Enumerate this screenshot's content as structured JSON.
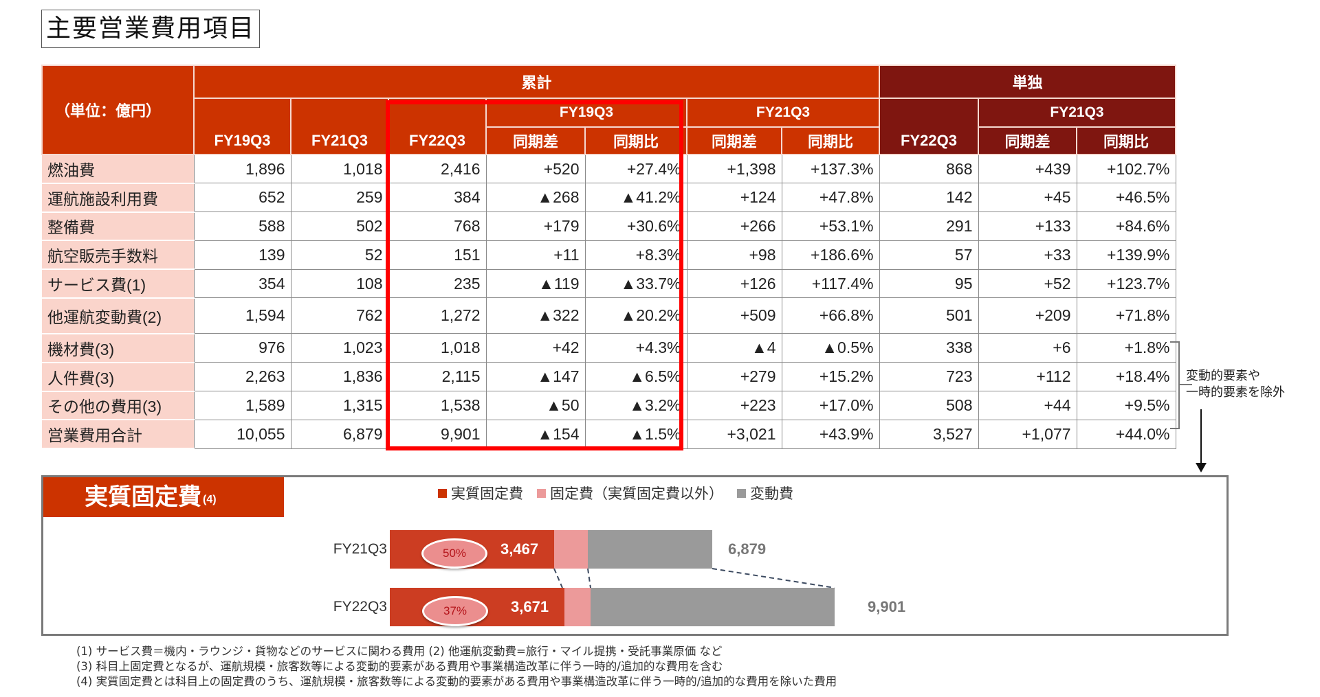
{
  "page_title": "主要営業費用項目",
  "table": {
    "unit_label": "（単位：億円）",
    "group_cumulative": "累計",
    "group_single": "単独",
    "col_fy19q3": "FY19Q3",
    "col_fy21q3": "FY21Q3",
    "col_fy22q3": "FY22Q3",
    "sub_fy19q3": "FY19Q3",
    "sub_fy21q3": "FY21Q3",
    "single_fy22q3": "FY22Q3",
    "single_sub_fy21q3": "FY21Q3",
    "diff_label": "同期差",
    "ratio_label": "同期比",
    "rows": [
      {
        "label": "燃油費",
        "fy19q3": "1,896",
        "fy21q3": "1,018",
        "fy22q3": "2,416",
        "vs19_diff": "+520",
        "vs19_ratio": "+27.4%",
        "vs21_diff": "+1,398",
        "vs21_ratio": "+137.3%",
        "single_fy22q3": "868",
        "single_diff": "+439",
        "single_ratio": "+102.7%"
      },
      {
        "label": "運航施設利用費",
        "fy19q3": "652",
        "fy21q3": "259",
        "fy22q3": "384",
        "vs19_diff": "▲268",
        "vs19_ratio": "▲41.2%",
        "vs21_diff": "+124",
        "vs21_ratio": "+47.8%",
        "single_fy22q3": "142",
        "single_diff": "+45",
        "single_ratio": "+46.5%"
      },
      {
        "label": "整備費",
        "fy19q3": "588",
        "fy21q3": "502",
        "fy22q3": "768",
        "vs19_diff": "+179",
        "vs19_ratio": "+30.6%",
        "vs21_diff": "+266",
        "vs21_ratio": "+53.1%",
        "single_fy22q3": "291",
        "single_diff": "+133",
        "single_ratio": "+84.6%"
      },
      {
        "label": "航空販売手数料",
        "fy19q3": "139",
        "fy21q3": "52",
        "fy22q3": "151",
        "vs19_diff": "+11",
        "vs19_ratio": "+8.3%",
        "vs21_diff": "+98",
        "vs21_ratio": "+186.6%",
        "single_fy22q3": "57",
        "single_diff": "+33",
        "single_ratio": "+139.9%"
      },
      {
        "label": "サービス費(1)",
        "fy19q3": "354",
        "fy21q3": "108",
        "fy22q3": "235",
        "vs19_diff": "▲119",
        "vs19_ratio": "▲33.7%",
        "vs21_diff": "+126",
        "vs21_ratio": "+117.4%",
        "single_fy22q3": "95",
        "single_diff": "+52",
        "single_ratio": "+123.7%"
      },
      {
        "label": "他運航変動費(2)",
        "fy19q3": "1,594",
        "fy21q3": "762",
        "fy22q3": "1,272",
        "vs19_diff": "▲322",
        "vs19_ratio": "▲20.2%",
        "vs21_diff": "+509",
        "vs21_ratio": "+66.8%",
        "single_fy22q3": "501",
        "single_diff": "+209",
        "single_ratio": "+71.8%"
      },
      {
        "label": "機材費(3)",
        "fy19q3": "976",
        "fy21q3": "1,023",
        "fy22q3": "1,018",
        "vs19_diff": "+42",
        "vs19_ratio": "+4.3%",
        "vs21_diff": "▲4",
        "vs21_ratio": "▲0.5%",
        "single_fy22q3": "338",
        "single_diff": "+6",
        "single_ratio": "+1.8%"
      },
      {
        "label": "人件費(3)",
        "fy19q3": "2,263",
        "fy21q3": "1,836",
        "fy22q3": "2,115",
        "vs19_diff": "▲147",
        "vs19_ratio": "▲6.5%",
        "vs21_diff": "+279",
        "vs21_ratio": "+15.2%",
        "single_fy22q3": "723",
        "single_diff": "+112",
        "single_ratio": "+18.4%"
      },
      {
        "label": "その他の費用(3)",
        "fy19q3": "1,589",
        "fy21q3": "1,315",
        "fy22q3": "1,538",
        "vs19_diff": "▲50",
        "vs19_ratio": "▲3.2%",
        "vs21_diff": "+223",
        "vs21_ratio": "+17.0%",
        "single_fy22q3": "508",
        "single_diff": "+44",
        "single_ratio": "+9.5%"
      },
      {
        "label": "営業費用合計",
        "fy19q3": "10,055",
        "fy21q3": "6,879",
        "fy22q3": "9,901",
        "vs19_diff": "▲154",
        "vs19_ratio": "▲1.5%",
        "vs21_diff": "+3,021",
        "vs21_ratio": "+43.9%",
        "single_fy22q3": "3,527",
        "single_diff": "+1,077",
        "single_ratio": "+44.0%"
      }
    ]
  },
  "side_note": {
    "line1": "変動的要素や",
    "line2": "一時的要素を除外"
  },
  "panel": {
    "title": "実質固定費",
    "title_note": "(4)",
    "legend": [
      {
        "label": "実質固定費",
        "color": "#cc3300"
      },
      {
        "label": "固定費（実質固定費以外）",
        "color": "#ec9a9a"
      },
      {
        "label": "変動費",
        "color": "#9a9a9a"
      }
    ],
    "bars": [
      {
        "label": "FY21Q3",
        "real_fixed": "3,467",
        "pct": "50%",
        "total": "6,879"
      },
      {
        "label": "FY22Q3",
        "real_fixed": "3,671",
        "pct": "37%",
        "total": "9,901"
      }
    ]
  },
  "chart_data": {
    "type": "bar",
    "orientation": "horizontal-stacked",
    "title": "実質固定費(4)",
    "categories": [
      "FY21Q3",
      "FY22Q3"
    ],
    "series": [
      {
        "name": "実質固定費",
        "values": [
          3467,
          3671
        ],
        "color": "#cc3300"
      },
      {
        "name": "固定費（実質固定費以外）",
        "values": [
          470,
          560
        ],
        "color": "#ec9a9a"
      },
      {
        "name": "変動費",
        "values": [
          2942,
          5670
        ],
        "color": "#9a9a9a"
      }
    ],
    "totals": [
      6879,
      9901
    ],
    "share_labels": [
      "50%",
      "37%"
    ],
    "legend_position": "top",
    "grid": false
  },
  "footnotes": [
    "(1) サービス費＝機内・ラウンジ・貨物などのサービスに関わる費用 (2) 他運航変動費=旅行・マイル提携・受託事業原価 など",
    "(3) 科目上固定費となるが、運航規模・旅客数等による変動的要素がある費用や事業構造改革に伴う一時的/追加的な費用を含む",
    "(4) 実質固定費とは科目上の固定費のうち、運航規模・旅客数等による変動的要素がある費用や事業構造改革に伴う一時的/追加的な費用を除いた費用"
  ]
}
